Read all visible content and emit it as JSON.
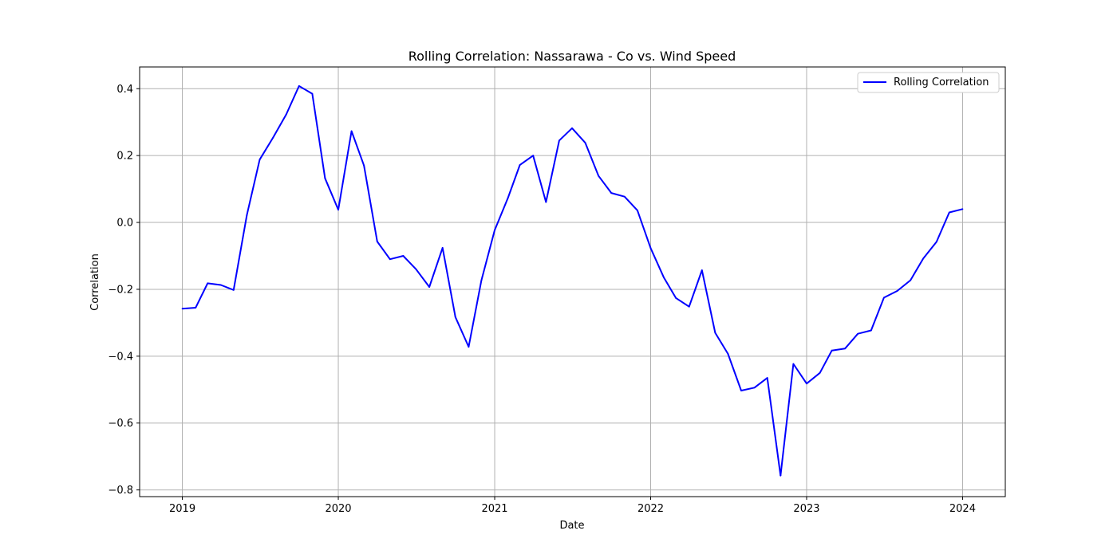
{
  "chart_data": {
    "type": "line",
    "title": "Rolling Correlation: Nassarawa - Co vs. Wind Speed",
    "xlabel": "Date",
    "ylabel": "Correlation",
    "x_ticks": [
      "2019",
      "2020",
      "2021",
      "2022",
      "2023",
      "2024"
    ],
    "y_ticks": [
      -0.8,
      -0.6,
      -0.4,
      -0.2,
      0.0,
      0.2,
      0.4
    ],
    "xlim": [
      "2018-09-23",
      "2024-04-10"
    ],
    "ylim": [
      -0.82,
      0.465
    ],
    "grid": true,
    "legend_position": "top-right",
    "series": [
      {
        "name": "Rolling Correlation",
        "color": "#0000ff",
        "x": [
          "2019-01-01",
          "2019-02-01",
          "2019-03-01",
          "2019-04-01",
          "2019-05-01",
          "2019-06-01",
          "2019-07-01",
          "2019-08-01",
          "2019-09-01",
          "2019-10-01",
          "2019-11-01",
          "2019-12-01",
          "2020-01-01",
          "2020-02-01",
          "2020-03-01",
          "2020-04-01",
          "2020-05-01",
          "2020-06-01",
          "2020-07-01",
          "2020-08-01",
          "2020-09-01",
          "2020-10-01",
          "2020-11-01",
          "2020-12-01",
          "2021-01-01",
          "2021-02-01",
          "2021-03-01",
          "2021-04-01",
          "2021-05-01",
          "2021-06-01",
          "2021-07-01",
          "2021-08-01",
          "2021-09-01",
          "2021-10-01",
          "2021-11-01",
          "2021-12-01",
          "2022-01-01",
          "2022-02-01",
          "2022-03-01",
          "2022-04-01",
          "2022-05-01",
          "2022-06-01",
          "2022-07-01",
          "2022-08-01",
          "2022-09-01",
          "2022-10-01",
          "2022-11-01",
          "2022-12-01",
          "2023-01-01",
          "2023-02-01",
          "2023-03-01",
          "2023-04-01",
          "2023-05-01",
          "2023-06-01",
          "2023-07-01",
          "2023-08-01",
          "2023-09-01",
          "2023-10-01",
          "2023-11-01",
          "2023-12-01",
          "2024-01-01"
        ],
        "values": [
          -0.258,
          -0.255,
          -0.182,
          -0.187,
          -0.202,
          0.022,
          0.188,
          0.253,
          0.323,
          0.408,
          0.385,
          0.132,
          0.038,
          0.273,
          0.17,
          -0.057,
          -0.11,
          -0.1,
          -0.14,
          -0.193,
          -0.076,
          -0.283,
          -0.372,
          -0.173,
          -0.023,
          0.073,
          0.172,
          0.2,
          0.061,
          0.245,
          0.282,
          0.238,
          0.139,
          0.088,
          0.077,
          0.036,
          -0.077,
          -0.165,
          -0.226,
          -0.252,
          -0.143,
          -0.33,
          -0.393,
          -0.503,
          -0.494,
          -0.465,
          -0.757,
          -0.423,
          -0.482,
          -0.45,
          -0.383,
          -0.377,
          -0.333,
          -0.323,
          -0.225,
          -0.205,
          -0.173,
          -0.108,
          -0.058,
          0.03,
          0.04
        ]
      }
    ]
  }
}
